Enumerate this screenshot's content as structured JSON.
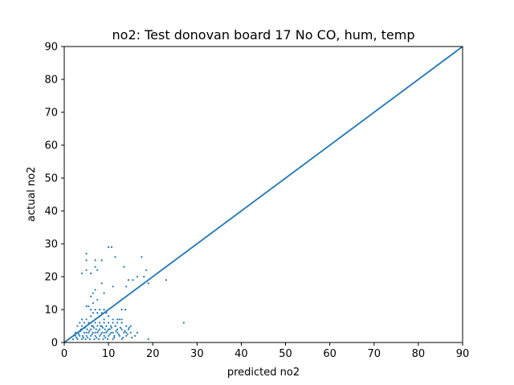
{
  "colors": {
    "series": "#1f77b4",
    "axis": "#000000",
    "background": "#ffffff"
  },
  "chart_data": {
    "type": "scatter",
    "title": "no2: Test donovan board 17 No CO, hum, temp",
    "xlabel": "predicted no2",
    "ylabel": "actual no2",
    "xlim": [
      0,
      90
    ],
    "ylim": [
      0,
      90
    ],
    "xticks": [
      0,
      10,
      20,
      30,
      40,
      50,
      60,
      70,
      80,
      90
    ],
    "yticks": [
      0,
      10,
      20,
      30,
      40,
      50,
      60,
      70,
      80,
      90
    ],
    "grid": false,
    "legend": false,
    "reference_line": {
      "x": [
        0,
        90
      ],
      "y": [
        0,
        90
      ]
    },
    "points": [
      [
        2.0,
        1
      ],
      [
        2.5,
        2
      ],
      [
        3.0,
        1
      ],
      [
        3.2,
        3
      ],
      [
        3.5,
        2
      ],
      [
        3.8,
        4
      ],
      [
        4.0,
        1
      ],
      [
        4.2,
        2
      ],
      [
        4.5,
        3
      ],
      [
        4.8,
        1
      ],
      [
        5.0,
        2
      ],
      [
        5.2,
        4
      ],
      [
        5.5,
        3
      ],
      [
        5.8,
        1
      ],
      [
        6.0,
        2
      ],
      [
        6.2,
        5
      ],
      [
        6.5,
        3
      ],
      [
        6.8,
        1
      ],
      [
        7.0,
        2
      ],
      [
        7.2,
        4
      ],
      [
        7.5,
        3
      ],
      [
        7.8,
        1
      ],
      [
        8.0,
        2
      ],
      [
        8.2,
        5
      ],
      [
        8.5,
        3
      ],
      [
        8.8,
        1
      ],
      [
        9.0,
        2
      ],
      [
        9.2,
        4
      ],
      [
        9.5,
        3
      ],
      [
        9.8,
        1
      ],
      [
        10.0,
        2
      ],
      [
        10.3,
        4
      ],
      [
        10.6,
        3
      ],
      [
        11.0,
        1
      ],
      [
        11.3,
        2
      ],
      [
        11.6,
        5
      ],
      [
        12.0,
        3
      ],
      [
        12.5,
        2
      ],
      [
        13.0,
        1
      ],
      [
        13.5,
        3
      ],
      [
        14.0,
        2
      ],
      [
        14.5,
        4
      ],
      [
        15.0,
        3
      ],
      [
        16.0,
        2
      ],
      [
        3.0,
        5
      ],
      [
        3.5,
        6
      ],
      [
        4.0,
        5
      ],
      [
        4.5,
        6
      ],
      [
        5.0,
        5
      ],
      [
        5.5,
        6
      ],
      [
        6.0,
        6
      ],
      [
        6.5,
        5
      ],
      [
        7.0,
        6
      ],
      [
        7.5,
        5
      ],
      [
        8.0,
        6
      ],
      [
        8.5,
        5
      ],
      [
        9.0,
        6
      ],
      [
        9.5,
        5
      ],
      [
        10.0,
        6
      ],
      [
        10.5,
        5
      ],
      [
        11.0,
        6
      ],
      [
        11.5,
        5
      ],
      [
        12.0,
        6
      ],
      [
        12.5,
        7
      ],
      [
        13.0,
        6
      ],
      [
        14.0,
        5
      ],
      [
        15.0,
        5
      ],
      [
        4.0,
        4
      ],
      [
        5.0,
        3
      ],
      [
        6.0,
        4
      ],
      [
        7.0,
        3
      ],
      [
        8.0,
        4
      ],
      [
        9.0,
        3
      ],
      [
        10.0,
        4
      ],
      [
        11.0,
        3
      ],
      [
        12.0,
        4
      ],
      [
        13.0,
        4
      ],
      [
        14.0,
        3
      ],
      [
        4.0,
        7
      ],
      [
        5.0,
        7
      ],
      [
        6.0,
        8
      ],
      [
        7.0,
        7
      ],
      [
        8.0,
        8
      ],
      [
        9.0,
        7
      ],
      [
        10.0,
        8
      ],
      [
        11.0,
        7
      ],
      [
        12.0,
        7
      ],
      [
        13.0,
        7
      ],
      [
        6.5,
        9
      ],
      [
        7.5,
        9
      ],
      [
        8.5,
        9
      ],
      [
        9.5,
        9
      ],
      [
        6.0,
        10
      ],
      [
        7.0,
        10
      ],
      [
        8.0,
        10
      ],
      [
        9.0,
        10
      ],
      [
        13.0,
        10
      ],
      [
        13.8,
        10
      ],
      [
        5.0,
        11
      ],
      [
        5.5,
        11
      ],
      [
        6.5,
        12
      ],
      [
        7.5,
        13
      ],
      [
        6.0,
        14
      ],
      [
        6.5,
        15
      ],
      [
        7.0,
        16
      ],
      [
        9.0,
        15
      ],
      [
        11.0,
        17
      ],
      [
        14.0,
        17
      ],
      [
        14.5,
        19
      ],
      [
        15.5,
        19
      ],
      [
        16.5,
        20
      ],
      [
        19.0,
        18
      ],
      [
        23.0,
        19
      ],
      [
        18.0,
        20
      ],
      [
        18.5,
        22
      ],
      [
        17.5,
        26
      ],
      [
        4.0,
        21
      ],
      [
        5.0,
        22
      ],
      [
        6.0,
        21
      ],
      [
        7.0,
        23
      ],
      [
        7.5,
        22
      ],
      [
        8.5,
        18
      ],
      [
        7.0,
        25
      ],
      [
        8.5,
        25
      ],
      [
        5.0,
        25
      ],
      [
        5.0,
        27
      ],
      [
        10.0,
        29
      ],
      [
        10.7,
        29
      ],
      [
        11.5,
        26
      ],
      [
        13.5,
        23
      ],
      [
        19.0,
        1
      ],
      [
        27.0,
        6
      ],
      [
        2.8,
        1.5
      ],
      [
        3.3,
        2.5
      ],
      [
        4.3,
        1.5
      ],
      [
        5.3,
        1.5
      ],
      [
        6.3,
        2.5
      ],
      [
        7.3,
        1.5
      ],
      [
        8.3,
        2.5
      ],
      [
        9.3,
        1.5
      ],
      [
        10.3,
        2.5
      ],
      [
        11.3,
        1.5
      ],
      [
        12.3,
        2.5
      ],
      [
        13.3,
        1.5
      ],
      [
        14.3,
        2.5
      ],
      [
        15.3,
        1.5
      ],
      [
        16.5,
        3
      ],
      [
        2.5,
        3
      ],
      [
        3.7,
        3.5
      ],
      [
        4.7,
        4.5
      ],
      [
        5.7,
        3.5
      ],
      [
        6.7,
        4.5
      ],
      [
        7.7,
        3.5
      ],
      [
        8.7,
        4.5
      ],
      [
        9.7,
        3.5
      ],
      [
        10.7,
        4.5
      ],
      [
        11.7,
        3.5
      ],
      [
        12.7,
        4.5
      ],
      [
        13.7,
        3.5
      ],
      [
        14.7,
        4.5
      ]
    ]
  }
}
